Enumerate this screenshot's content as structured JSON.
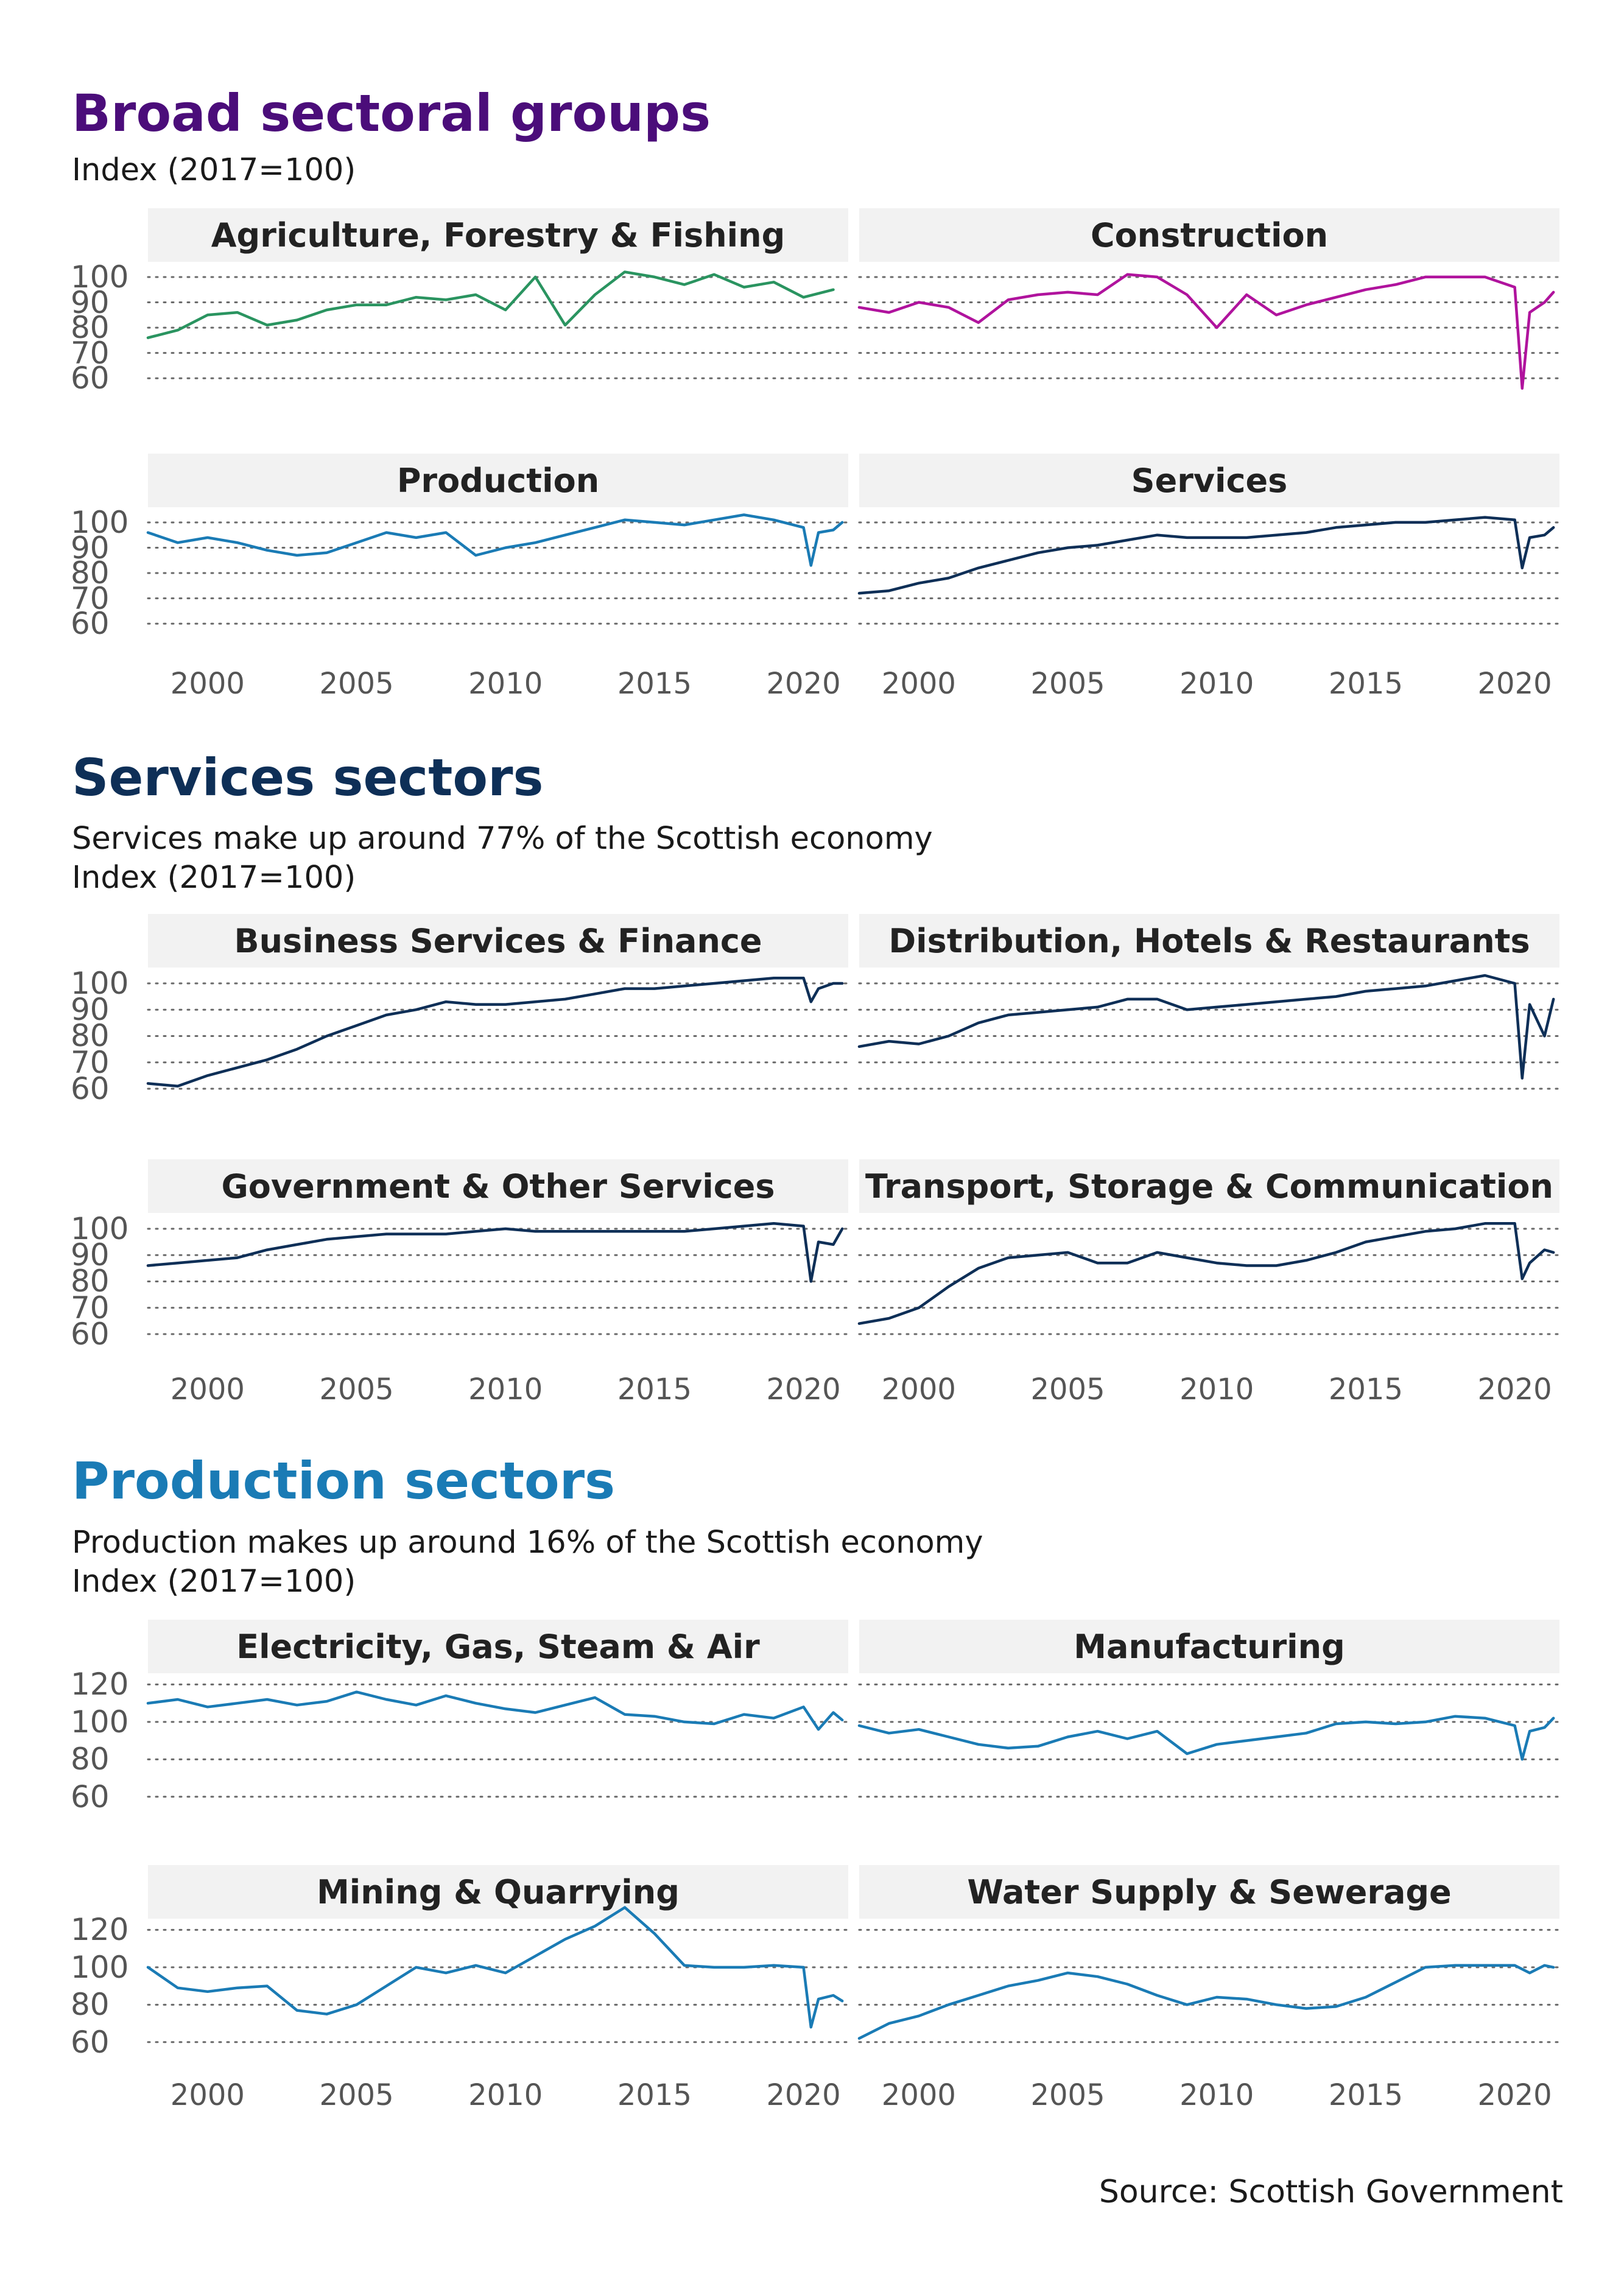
{
  "sections": [
    {
      "title": "Broad sectoral groups",
      "subtitle1": "",
      "subtitle2": "Index (2017=100)",
      "color": "#4b0d7a"
    },
    {
      "title": "Services sectors",
      "subtitle1": "Services make up around 77% of the Scottish economy",
      "subtitle2": "Index (2017=100)",
      "color": "#0e2f57"
    },
    {
      "title": "Production sectors",
      "subtitle1": "Production makes up around 16% of the Scottish economy",
      "subtitle2": "Index (2017=100)",
      "color": "#1a7bb5"
    }
  ],
  "source": "Source: Scottish Government",
  "axes": {
    "x_ticks": [
      "2000",
      "2005",
      "2010",
      "2015",
      "2020"
    ],
    "y_ticks_a": [
      "100",
      "90",
      "80",
      "70",
      "60"
    ],
    "y_ticks_b": [
      "120",
      "100",
      "80",
      "60"
    ]
  },
  "colors": {
    "agriculture": "#2a9460",
    "construction": "#b0139d",
    "production": "#1a7bb5",
    "services": "#0e2f57"
  },
  "chart_data": [
    {
      "type": "line",
      "title": "Agriculture, Forestry & Fishing",
      "xlim": [
        1998,
        2021.5
      ],
      "ylim": [
        55,
        106
      ],
      "series": [
        {
          "x": [
            1998,
            1999,
            2000,
            2001,
            2002,
            2003,
            2004,
            2005,
            2006,
            2007,
            2008,
            2009,
            2010,
            2011,
            2012,
            2013,
            2014,
            2015,
            2016,
            2017,
            2018,
            2019,
            2020,
            2021
          ],
          "values": [
            76,
            79,
            85,
            86,
            81,
            83,
            87,
            89,
            89,
            92,
            91,
            93,
            87,
            100,
            81,
            93,
            102,
            100,
            97,
            101,
            96,
            98,
            92,
            95
          ]
        }
      ]
    },
    {
      "type": "line",
      "title": "Construction",
      "xlim": [
        1998,
        2021.5
      ],
      "ylim": [
        55,
        106
      ],
      "series": [
        {
          "x": [
            1998,
            1999,
            2000,
            2001,
            2002,
            2003,
            2004,
            2005,
            2006,
            2007,
            2008,
            2009,
            2010,
            2011,
            2012,
            2013,
            2014,
            2015,
            2016,
            2017,
            2018,
            2019,
            2020,
            2020.25,
            2020.5,
            2021,
            2021.3
          ],
          "values": [
            88,
            86,
            90,
            88,
            82,
            91,
            93,
            94,
            93,
            101,
            100,
            93,
            80,
            93,
            85,
            89,
            92,
            95,
            97,
            100,
            100,
            100,
            96,
            56,
            86,
            90,
            94
          ]
        }
      ]
    },
    {
      "type": "line",
      "title": "Production",
      "xlim": [
        1998,
        2021.5
      ],
      "ylim": [
        55,
        106
      ],
      "series": [
        {
          "x": [
            1998,
            1999,
            2000,
            2001,
            2002,
            2003,
            2004,
            2005,
            2006,
            2007,
            2008,
            2009,
            2010,
            2011,
            2012,
            2013,
            2014,
            2015,
            2016,
            2017,
            2018,
            2019,
            2020,
            2020.25,
            2020.5,
            2021,
            2021.3
          ],
          "values": [
            96,
            92,
            94,
            92,
            89,
            87,
            88,
            92,
            96,
            94,
            96,
            87,
            90,
            92,
            95,
            98,
            101,
            100,
            99,
            101,
            103,
            101,
            98,
            83,
            96,
            97,
            100
          ]
        }
      ]
    },
    {
      "type": "line",
      "title": "Services",
      "xlim": [
        1998,
        2021.5
      ],
      "ylim": [
        55,
        106
      ],
      "series": [
        {
          "x": [
            1998,
            1999,
            2000,
            2001,
            2002,
            2003,
            2004,
            2005,
            2006,
            2007,
            2008,
            2009,
            2010,
            2011,
            2012,
            2013,
            2014,
            2015,
            2016,
            2017,
            2018,
            2019,
            2020,
            2020.25,
            2020.5,
            2021,
            2021.3
          ],
          "values": [
            72,
            73,
            76,
            78,
            82,
            85,
            88,
            90,
            91,
            93,
            95,
            94,
            94,
            94,
            95,
            96,
            98,
            99,
            100,
            100,
            101,
            102,
            101,
            82,
            94,
            95,
            98
          ]
        }
      ]
    },
    {
      "type": "line",
      "title": "Business Services & Finance",
      "xlim": [
        1998,
        2021.5
      ],
      "ylim": [
        57,
        106
      ],
      "series": [
        {
          "x": [
            1998,
            1999,
            2000,
            2001,
            2002,
            2003,
            2004,
            2005,
            2006,
            2007,
            2008,
            2009,
            2010,
            2011,
            2012,
            2013,
            2014,
            2015,
            2016,
            2017,
            2018,
            2019,
            2020,
            2020.25,
            2020.5,
            2021,
            2021.3
          ],
          "values": [
            62,
            61,
            65,
            68,
            71,
            75,
            80,
            84,
            88,
            90,
            93,
            92,
            92,
            93,
            94,
            96,
            98,
            98,
            99,
            100,
            101,
            102,
            102,
            93,
            98,
            100,
            100
          ]
        }
      ]
    },
    {
      "type": "line",
      "title": "Distribution, Hotels & Restaurants",
      "xlim": [
        1998,
        2021.5
      ],
      "ylim": [
        57,
        106
      ],
      "series": [
        {
          "x": [
            1998,
            1999,
            2000,
            2001,
            2002,
            2003,
            2004,
            2005,
            2006,
            2007,
            2008,
            2009,
            2010,
            2011,
            2012,
            2013,
            2014,
            2015,
            2016,
            2017,
            2018,
            2019,
            2020,
            2020.25,
            2020.5,
            2021,
            2021.3
          ],
          "values": [
            76,
            78,
            77,
            80,
            85,
            88,
            89,
            90,
            91,
            94,
            94,
            90,
            91,
            92,
            93,
            94,
            95,
            97,
            98,
            99,
            101,
            103,
            100,
            64,
            92,
            80,
            94
          ]
        }
      ]
    },
    {
      "type": "line",
      "title": "Government & Other Services",
      "xlim": [
        1998,
        2021.5
      ],
      "ylim": [
        57,
        106
      ],
      "series": [
        {
          "x": [
            1998,
            1999,
            2000,
            2001,
            2002,
            2003,
            2004,
            2005,
            2006,
            2007,
            2008,
            2009,
            2010,
            2011,
            2012,
            2013,
            2014,
            2015,
            2016,
            2017,
            2018,
            2019,
            2020,
            2020.25,
            2020.5,
            2021,
            2021.3
          ],
          "values": [
            86,
            87,
            88,
            89,
            92,
            94,
            96,
            97,
            98,
            98,
            98,
            99,
            100,
            99,
            99,
            99,
            99,
            99,
            99,
            100,
            101,
            102,
            101,
            80,
            95,
            94,
            100
          ]
        }
      ]
    },
    {
      "type": "line",
      "title": "Transport, Storage & Communication",
      "xlim": [
        1998,
        2021.5
      ],
      "ylim": [
        57,
        106
      ],
      "series": [
        {
          "x": [
            1998,
            1999,
            2000,
            2001,
            2002,
            2003,
            2004,
            2005,
            2006,
            2007,
            2008,
            2009,
            2010,
            2011,
            2012,
            2013,
            2014,
            2015,
            2016,
            2017,
            2018,
            2019,
            2020,
            2020.25,
            2020.5,
            2021,
            2021.3
          ],
          "values": [
            64,
            66,
            70,
            78,
            85,
            89,
            90,
            91,
            87,
            87,
            91,
            89,
            87,
            86,
            86,
            88,
            91,
            95,
            97,
            99,
            100,
            102,
            102,
            81,
            87,
            92,
            91
          ]
        }
      ]
    },
    {
      "type": "line",
      "title": "Electricity, Gas, Steam & Air",
      "xlim": [
        1998,
        2021.5
      ],
      "ylim": [
        57,
        126
      ],
      "series": [
        {
          "x": [
            1998,
            1999,
            2000,
            2001,
            2002,
            2003,
            2004,
            2005,
            2006,
            2007,
            2008,
            2009,
            2010,
            2011,
            2012,
            2013,
            2014,
            2015,
            2016,
            2017,
            2018,
            2019,
            2020,
            2020.5,
            2021,
            2021.3
          ],
          "values": [
            110,
            112,
            108,
            110,
            112,
            109,
            111,
            116,
            112,
            109,
            114,
            110,
            107,
            105,
            109,
            113,
            104,
            103,
            100,
            99,
            104,
            102,
            108,
            96,
            105,
            101
          ]
        }
      ]
    },
    {
      "type": "line",
      "title": "Manufacturing",
      "xlim": [
        1998,
        2021.5
      ],
      "ylim": [
        57,
        126
      ],
      "series": [
        {
          "x": [
            1998,
            1999,
            2000,
            2001,
            2002,
            2003,
            2004,
            2005,
            2006,
            2007,
            2008,
            2009,
            2010,
            2011,
            2012,
            2013,
            2014,
            2015,
            2016,
            2017,
            2018,
            2019,
            2020,
            2020.25,
            2020.5,
            2021,
            2021.3
          ],
          "values": [
            98,
            94,
            96,
            92,
            88,
            86,
            87,
            92,
            95,
            91,
            95,
            83,
            88,
            90,
            92,
            94,
            99,
            100,
            99,
            100,
            103,
            102,
            98,
            80,
            95,
            97,
            102
          ]
        }
      ]
    },
    {
      "type": "line",
      "title": "Mining & Quarrying",
      "xlim": [
        1998,
        2021.5
      ],
      "ylim": [
        57,
        126
      ],
      "series": [
        {
          "x": [
            1998,
            1999,
            2000,
            2001,
            2002,
            2003,
            2004,
            2005,
            2006,
            2007,
            2008,
            2009,
            2010,
            2011,
            2012,
            2013,
            2014,
            2015,
            2016,
            2017,
            2018,
            2019,
            2020,
            2020.25,
            2020.5,
            2021,
            2021.3
          ],
          "values": [
            100,
            89,
            87,
            89,
            90,
            77,
            75,
            80,
            90,
            100,
            97,
            101,
            97,
            106,
            115,
            122,
            132,
            118,
            101,
            100,
            100,
            101,
            100,
            68,
            83,
            85,
            82
          ]
        }
      ]
    },
    {
      "type": "line",
      "title": "Water Supply & Sewerage",
      "xlim": [
        1998,
        2021.5
      ],
      "ylim": [
        57,
        126
      ],
      "series": [
        {
          "x": [
            1998,
            1999,
            2000,
            2001,
            2002,
            2003,
            2004,
            2005,
            2006,
            2007,
            2008,
            2009,
            2010,
            2011,
            2012,
            2013,
            2014,
            2015,
            2016,
            2017,
            2018,
            2019,
            2020,
            2020.5,
            2021,
            2021.3
          ],
          "values": [
            62,
            70,
            74,
            80,
            85,
            90,
            93,
            97,
            95,
            91,
            85,
            80,
            84,
            83,
            80,
            78,
            79,
            84,
            92,
            100,
            101,
            101,
            101,
            97,
            101,
            100
          ]
        }
      ]
    }
  ]
}
